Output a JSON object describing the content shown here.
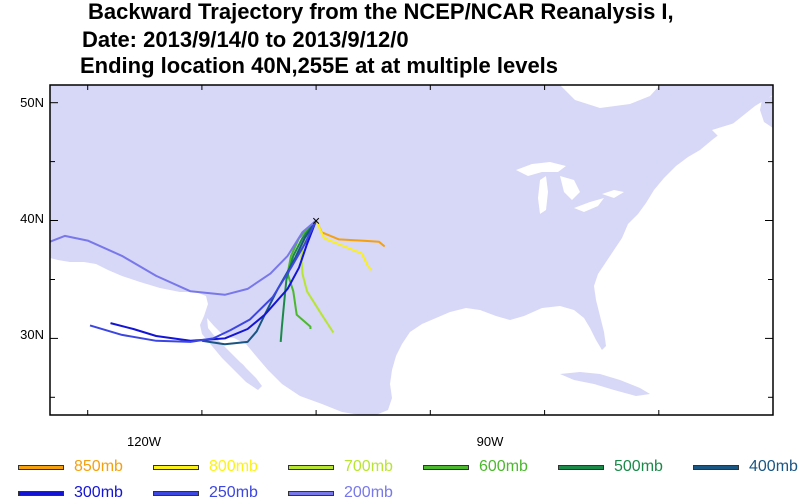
{
  "title": {
    "line1": "Backward Trajectory from the NCEP/NCAR Reanalysis I,",
    "line2": "Date: 2013/9/14/0 to 2013/9/12/0",
    "line3": "Ending location 40N,255E at at multiple levels"
  },
  "axes": {
    "lat_labels": [
      "50N",
      "40N",
      "30N"
    ],
    "lon_labels": [
      "120W",
      "90W"
    ],
    "lon_range": [
      -128.3,
      -65
    ],
    "lat_range": [
      23.5,
      51.5
    ]
  },
  "colors": {
    "land": "#d7d7f7",
    "water": "#ffffff"
  },
  "end_point": {
    "lon": -105,
    "lat": 40,
    "marker": "×"
  },
  "legend": [
    {
      "label": "850mb",
      "color": "#f5a00e"
    },
    {
      "label": "800mb",
      "color": "#fcf21a"
    },
    {
      "label": "700mb",
      "color": "#b8e532"
    },
    {
      "label": "600mb",
      "color": "#4cb82e"
    },
    {
      "label": "500mb",
      "color": "#1b8a48"
    },
    {
      "label": "400mb",
      "color": "#1a5683"
    },
    {
      "label": "300mb",
      "color": "#1414d6"
    },
    {
      "label": "250mb",
      "color": "#3c46e0"
    },
    {
      "label": "200mb",
      "color": "#7878ea"
    }
  ],
  "trajectories": [
    {
      "level": "850mb",
      "points": [
        [
          -105,
          40
        ],
        [
          -104.5,
          39
        ],
        [
          -103,
          38.4
        ],
        [
          -101,
          38.3
        ],
        [
          -99.5,
          38.2
        ],
        [
          -99,
          37.8
        ]
      ]
    },
    {
      "level": "800mb",
      "points": [
        [
          -105,
          40
        ],
        [
          -104.3,
          38.5
        ],
        [
          -102.5,
          37.8
        ],
        [
          -101,
          37.2
        ],
        [
          -100.5,
          36.2
        ],
        [
          -100.2,
          35.8
        ]
      ]
    },
    {
      "level": "700mb",
      "points": [
        [
          -105,
          40
        ],
        [
          -106,
          38.5
        ],
        [
          -106.3,
          37
        ],
        [
          -106.2,
          35.5
        ],
        [
          -105.8,
          34
        ],
        [
          -104.5,
          32
        ],
        [
          -103.5,
          30.5
        ]
      ]
    },
    {
      "level": "600mb",
      "points": [
        [
          -105,
          40
        ],
        [
          -106.5,
          38.5
        ],
        [
          -107.2,
          37
        ],
        [
          -107.5,
          35.5
        ],
        [
          -107,
          34
        ],
        [
          -106.7,
          32
        ],
        [
          -105.5,
          31
        ],
        [
          -105.5,
          30.8
        ]
      ]
    },
    {
      "level": "500mb",
      "points": [
        [
          -105,
          40
        ],
        [
          -106.2,
          38.5
        ],
        [
          -107,
          37
        ],
        [
          -107.6,
          35
        ],
        [
          -107.8,
          33
        ],
        [
          -108,
          31
        ],
        [
          -108.1,
          29.7
        ]
      ]
    },
    {
      "level": "400mb",
      "points": [
        [
          -105,
          40
        ],
        [
          -106,
          38.5
        ],
        [
          -107,
          36.5
        ],
        [
          -108.3,
          34.3
        ],
        [
          -109.5,
          32
        ],
        [
          -110.2,
          30.6
        ],
        [
          -111,
          29.7
        ],
        [
          -113,
          29.5
        ],
        [
          -115,
          29.8
        ]
      ]
    },
    {
      "level": "300mb",
      "points": [
        [
          -105,
          40
        ],
        [
          -105.8,
          38
        ],
        [
          -106.5,
          36
        ],
        [
          -107.5,
          34.2
        ],
        [
          -109.5,
          32
        ],
        [
          -111,
          30.8
        ],
        [
          -113,
          30
        ],
        [
          -116,
          29.8
        ],
        [
          -119,
          30.2
        ],
        [
          -121,
          30.8
        ],
        [
          -123,
          31.3
        ]
      ]
    },
    {
      "level": "250mb",
      "points": [
        [
          -105,
          40
        ],
        [
          -106,
          38
        ],
        [
          -107.2,
          36
        ],
        [
          -108.8,
          33.5
        ],
        [
          -110.8,
          31.6
        ],
        [
          -112.5,
          30.7
        ],
        [
          -114,
          30
        ],
        [
          -116,
          29.7
        ],
        [
          -119,
          29.8
        ],
        [
          -122,
          30.3
        ],
        [
          -124.8,
          31.1
        ]
      ]
    },
    {
      "level": "200mb",
      "points": [
        [
          -105,
          40
        ],
        [
          -106.2,
          39
        ],
        [
          -107.5,
          37
        ],
        [
          -109,
          35.5
        ],
        [
          -111,
          34.2
        ],
        [
          -113,
          33.7
        ],
        [
          -116,
          34
        ],
        [
          -119,
          35.3
        ],
        [
          -122,
          37
        ],
        [
          -125,
          38.3
        ],
        [
          -127,
          38.7
        ],
        [
          -128.3,
          38.2
        ]
      ]
    }
  ]
}
